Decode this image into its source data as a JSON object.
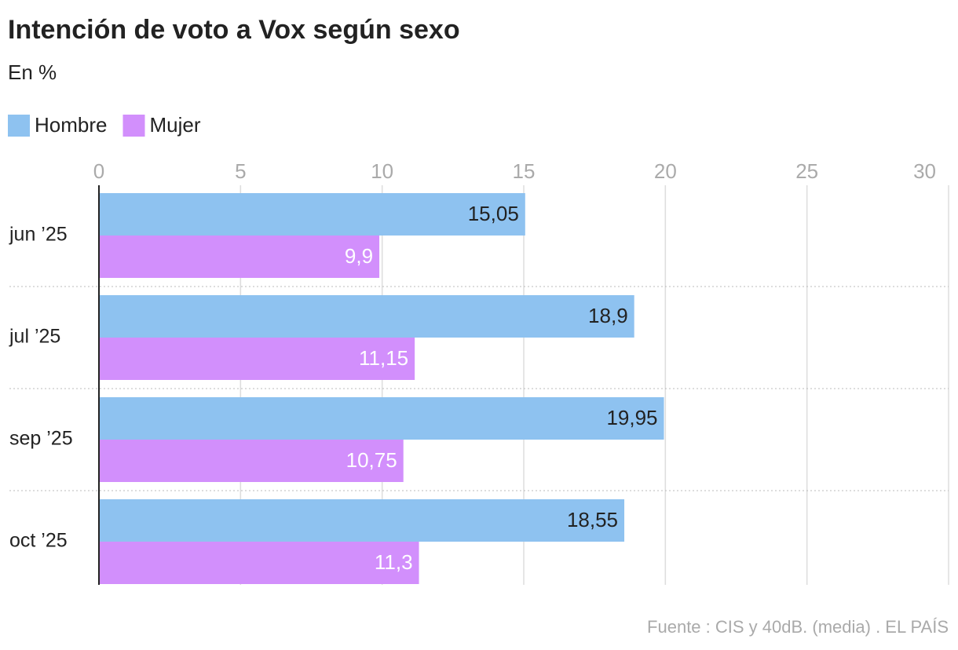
{
  "chart_data": {
    "type": "hbar",
    "title": "Intención de voto a Vox según sexo",
    "subtitle": "En %",
    "source": "Fuente : CIS y 40dB. (media) . EL PAÍS",
    "categories": [
      "jun ’25",
      "jul ’25",
      "sep ’25",
      "oct ’25"
    ],
    "series": [
      {
        "name": "Hombre",
        "color": "#8ec2f0",
        "values": [
          15.05,
          18.9,
          19.95,
          18.55
        ],
        "value_labels": [
          "15,05",
          "18,9",
          "19,95",
          "18,55"
        ]
      },
      {
        "name": "Mujer",
        "color": "#d28ffc",
        "values": [
          9.9,
          11.15,
          10.75,
          11.3
        ],
        "value_labels": [
          "9,9",
          "11,15",
          "10,75",
          "11,3"
        ]
      }
    ],
    "xlim": [
      0,
      30
    ],
    "xticks": [
      0,
      5,
      10,
      15,
      20,
      25,
      30
    ],
    "grid": true,
    "legend": "top-left"
  }
}
